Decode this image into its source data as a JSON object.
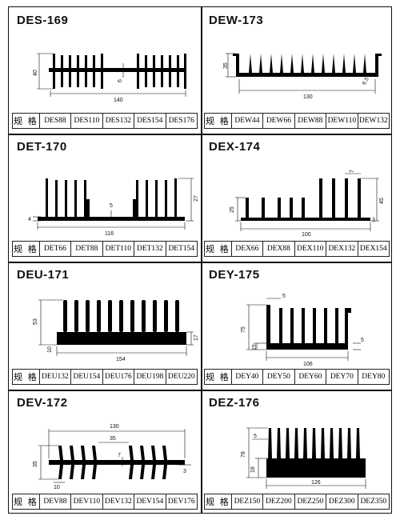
{
  "header_label": "规 格",
  "panels": [
    {
      "title": "DES-169",
      "dims": [
        "40",
        "140",
        "6"
      ],
      "specs": [
        "DES88",
        "DES110",
        "DES132",
        "DES154",
        "DES176"
      ]
    },
    {
      "title": "DEW-173",
      "dims": [
        "35",
        "130",
        "6.5"
      ],
      "specs": [
        "DEW44",
        "DEW66",
        "DEW88",
        "DEW110",
        "DEW132"
      ]
    },
    {
      "title": "DET-170",
      "dims": [
        "4",
        "5",
        "27",
        "116"
      ],
      "specs": [
        "DET66",
        "DET88",
        "DET110",
        "DET132",
        "DET154"
      ]
    },
    {
      "title": "DEX-174",
      "dims": [
        "7",
        "25",
        "45",
        "100",
        "3"
      ],
      "specs": [
        "DEX66",
        "DEX88",
        "DEX110",
        "DEX132",
        "DEX154"
      ]
    },
    {
      "title": "DEU-171",
      "dims": [
        "53",
        "17",
        "154",
        "10"
      ],
      "specs": [
        "DEU132",
        "DEU154",
        "DEU176",
        "DEU198",
        "DEU220"
      ]
    },
    {
      "title": "DEY-175",
      "dims": [
        "5",
        "75",
        "15",
        "5",
        "106"
      ],
      "specs": [
        "DEY40",
        "DEY50",
        "DEY60",
        "DEY70",
        "DEY80"
      ]
    },
    {
      "title": "DEV-172",
      "dims": [
        "130",
        "35",
        "7",
        "35",
        "3",
        "10"
      ],
      "specs": [
        "DEV88",
        "DEV110",
        "DEV132",
        "DEV154",
        "DEV176"
      ]
    },
    {
      "title": "DEZ-176",
      "dims": [
        "5",
        "78",
        "18",
        "126"
      ],
      "specs": [
        "DEZ150",
        "DEZ200",
        "DEZ250",
        "DEZ300",
        "DEZ350"
      ]
    }
  ]
}
